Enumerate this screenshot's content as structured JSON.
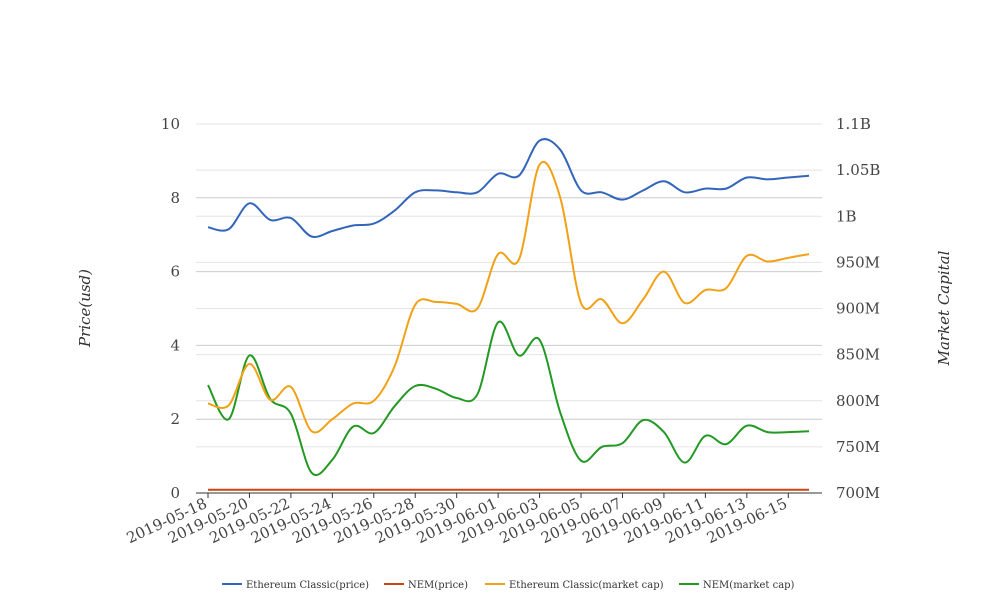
{
  "chart_data": {
    "type": "line",
    "title": "",
    "xlabel": "",
    "y_left": {
      "label": "Price(usd)",
      "range": [
        0,
        10
      ],
      "ticks": [
        "0",
        "2",
        "4",
        "6",
        "8",
        "10"
      ]
    },
    "y_right": {
      "label": "Market Capital",
      "range": [
        700000000,
        1100000000
      ],
      "ticks": [
        "700M",
        "750M",
        "800M",
        "850M",
        "900M",
        "950M",
        "1B",
        "1.05B",
        "1.1B"
      ]
    },
    "x_tick_labels": [
      "2019-05-18",
      "2019-05-20",
      "2019-05-22",
      "2019-05-24",
      "2019-05-26",
      "2019-05-28",
      "2019-05-30",
      "2019-06-01",
      "2019-06-03",
      "2019-06-05",
      "2019-06-07",
      "2019-06-09",
      "2019-06-11",
      "2019-06-13",
      "2019-06-15"
    ],
    "x": [
      "2019-05-18",
      "2019-05-19",
      "2019-05-20",
      "2019-05-21",
      "2019-05-22",
      "2019-05-23",
      "2019-05-24",
      "2019-05-25",
      "2019-05-26",
      "2019-05-27",
      "2019-05-28",
      "2019-05-29",
      "2019-05-30",
      "2019-05-31",
      "2019-06-01",
      "2019-06-02",
      "2019-06-03",
      "2019-06-04",
      "2019-06-05",
      "2019-06-06",
      "2019-06-07",
      "2019-06-08",
      "2019-06-09",
      "2019-06-10",
      "2019-06-11",
      "2019-06-12",
      "2019-06-13",
      "2019-06-14",
      "2019-06-15",
      "2019-06-16"
    ],
    "grid": true,
    "legend_position": "bottom",
    "series": [
      {
        "name": "Ethereum Classic(price)",
        "axis": "left",
        "color": "#3366bb",
        "values": [
          7.2,
          7.15,
          7.85,
          7.4,
          7.45,
          6.95,
          7.1,
          7.25,
          7.3,
          7.65,
          8.15,
          8.2,
          8.15,
          8.15,
          8.65,
          8.6,
          9.55,
          9.3,
          8.2,
          8.15,
          7.95,
          8.2,
          8.45,
          8.15,
          8.25,
          8.25,
          8.55,
          8.5,
          8.55,
          8.6
        ]
      },
      {
        "name": "NEM(price)",
        "axis": "left",
        "color": "#cc4411",
        "values": [
          0.09,
          0.09,
          0.09,
          0.09,
          0.09,
          0.09,
          0.09,
          0.09,
          0.09,
          0.09,
          0.09,
          0.09,
          0.09,
          0.09,
          0.09,
          0.09,
          0.09,
          0.09,
          0.09,
          0.09,
          0.09,
          0.09,
          0.09,
          0.09,
          0.09,
          0.09,
          0.09,
          0.09,
          0.09,
          0.09
        ]
      },
      {
        "name": "Ethereum Classic(market cap)",
        "axis": "right",
        "color": "#f2a116",
        "values": [
          797000000,
          795000000,
          840000000,
          801000000,
          815000000,
          767000000,
          780000000,
          797000000,
          800000000,
          837000000,
          904000000,
          907000000,
          905000000,
          900000000,
          959000000,
          953000000,
          1056000000,
          1020000000,
          906000000,
          910000000,
          884000000,
          910000000,
          940000000,
          906000000,
          920000000,
          922000000,
          957000000,
          951000000,
          955000000,
          959000000
        ]
      },
      {
        "name": "NEM(market cap)",
        "axis": "right",
        "color": "#229922",
        "values": [
          817000000,
          780000000,
          849000000,
          802000000,
          786000000,
          722000000,
          736000000,
          772000000,
          765000000,
          794000000,
          816000000,
          813000000,
          803000000,
          807000000,
          885000000,
          849000000,
          866000000,
          787000000,
          735000000,
          750000000,
          754000000,
          779000000,
          766000000,
          733000000,
          762000000,
          753000000,
          773000000,
          766000000,
          766000000,
          767000000
        ]
      }
    ]
  }
}
